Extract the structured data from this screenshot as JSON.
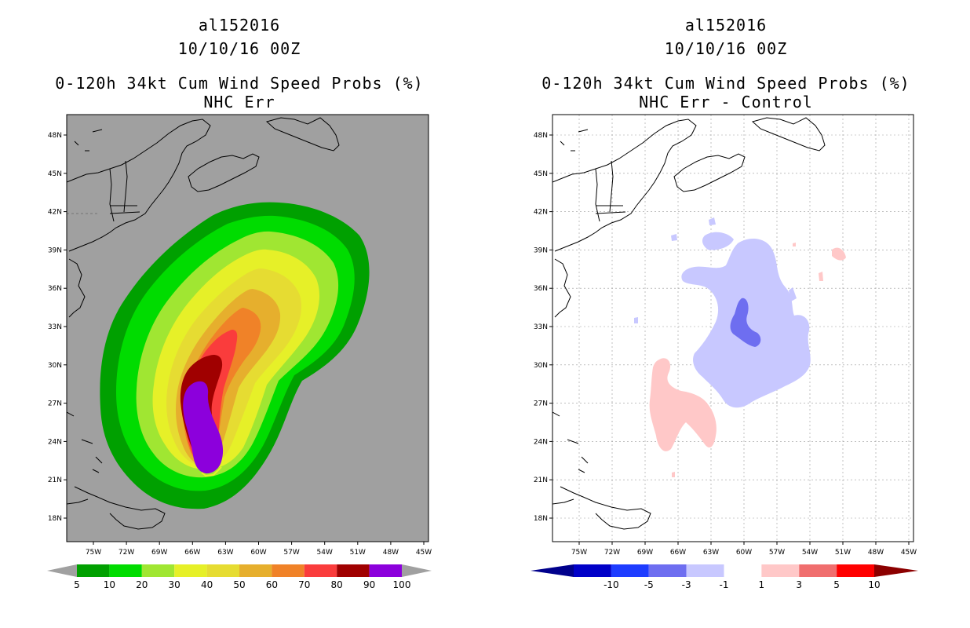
{
  "chart_data": [
    {
      "type": "filled-contour-map",
      "storm_id": "al152016",
      "datetime": "10/10/16 00Z",
      "title": "0-120h 34kt Cum Wind Speed Probs (%)",
      "subtitle": "NHC Err",
      "x_ticks": [
        "75W",
        "72W",
        "69W",
        "66W",
        "63W",
        "60W",
        "57W",
        "54W",
        "51W",
        "48W",
        "45W"
      ],
      "y_ticks": [
        "48N",
        "45N",
        "42N",
        "39N",
        "36N",
        "33N",
        "30N",
        "27N",
        "24N",
        "21N",
        "18N"
      ],
      "colorbar": {
        "labels": [
          "5",
          "10",
          "20",
          "30",
          "40",
          "50",
          "60",
          "70",
          "80",
          "90",
          "100"
        ],
        "colors": [
          "#00a000",
          "#00dc00",
          "#a0e632",
          "#e6f028",
          "#e6dc32",
          "#e6af2d",
          "#f08228",
          "#fa3c3c",
          "#a00000",
          "#8c00dc"
        ],
        "ends": "#a0a0a0"
      },
      "background": "#a0a0a0"
    },
    {
      "type": "filled-contour-map",
      "storm_id": "al152016",
      "datetime": "10/10/16 00Z",
      "title": "0-120h 34kt Cum Wind Speed Probs (%)",
      "subtitle": "NHC Err - Control",
      "x_ticks": [
        "75W",
        "72W",
        "69W",
        "66W",
        "63W",
        "60W",
        "57W",
        "54W",
        "51W",
        "48W",
        "45W"
      ],
      "y_ticks": [
        "48N",
        "45N",
        "42N",
        "39N",
        "36N",
        "33N",
        "30N",
        "27N",
        "24N",
        "21N",
        "18N"
      ],
      "colorbar": {
        "labels": [
          "-10",
          "-5",
          "-3",
          "-1",
          "1",
          "3",
          "5",
          "10"
        ],
        "colors": [
          "#0000c8",
          "#1e3cff",
          "#6e6ef0",
          "#c8c8ff",
          "#ffffff",
          "#ffc8c8",
          "#f06e6e",
          "#ff0000"
        ],
        "end_low": "#00008c",
        "end_high": "#8c0000"
      },
      "background": "#ffffff"
    }
  ]
}
